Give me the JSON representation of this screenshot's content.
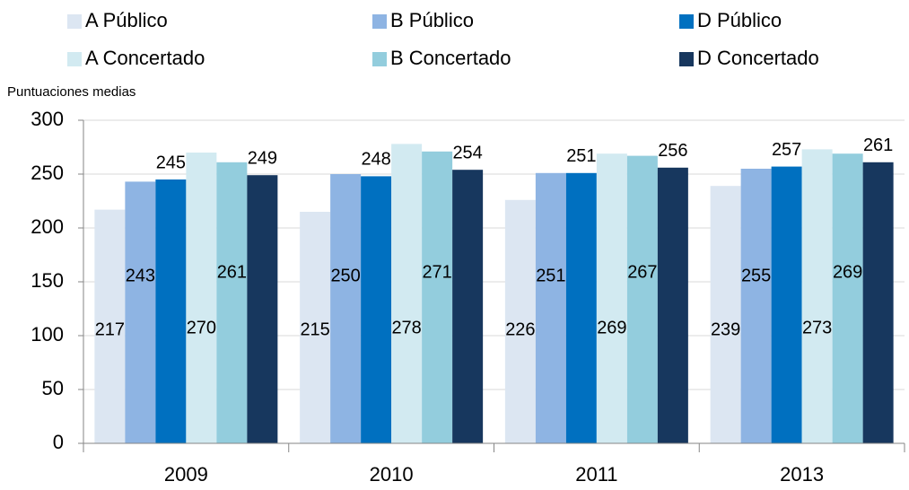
{
  "chart_data": {
    "type": "bar",
    "y_axis_label": "Puntuaciones medias",
    "categories": [
      "2009",
      "2010",
      "2011",
      "2013"
    ],
    "series": [
      {
        "name": "A Público",
        "color": "#dce6f2",
        "values": [
          217,
          215,
          226,
          239
        ]
      },
      {
        "name": "B Público",
        "color": "#8eb4e3",
        "values": [
          243,
          250,
          251,
          255
        ]
      },
      {
        "name": "D Público",
        "color": "#0070c0",
        "values": [
          245,
          248,
          251,
          257
        ]
      },
      {
        "name": "A Concertado",
        "color": "#d2eaf1",
        "values": [
          270,
          278,
          269,
          273
        ]
      },
      {
        "name": "B Concertado",
        "color": "#93cddd",
        "values": [
          261,
          271,
          267,
          269
        ]
      },
      {
        "name": "D Concertado",
        "color": "#17375e",
        "values": [
          249,
          254,
          256,
          261
        ]
      }
    ],
    "ylim": [
      0,
      300
    ],
    "yticks": [
      0,
      50,
      100,
      150,
      200,
      250,
      300
    ],
    "grid": true
  }
}
